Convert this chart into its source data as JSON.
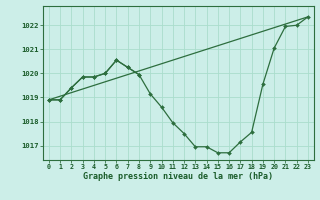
{
  "title": "Graphe pression niveau de la mer (hPa)",
  "background_color": "#cceee8",
  "grid_color": "#aaddcc",
  "line_color": "#2d6e3e",
  "marker_color": "#2d6e3e",
  "xlim": [
    -0.5,
    23.5
  ],
  "ylim": [
    1016.4,
    1022.8
  ],
  "yticks": [
    1017,
    1018,
    1019,
    1020,
    1021,
    1022
  ],
  "xticks": [
    0,
    1,
    2,
    3,
    4,
    5,
    6,
    7,
    8,
    9,
    10,
    11,
    12,
    13,
    14,
    15,
    16,
    17,
    18,
    19,
    20,
    21,
    22,
    23
  ],
  "series_main": {
    "x": [
      0,
      1,
      2,
      3,
      4,
      5,
      6,
      7,
      8,
      9,
      10,
      11,
      12,
      13,
      14,
      15,
      16,
      17,
      18,
      19,
      20,
      21,
      22,
      23
    ],
    "y": [
      1018.9,
      1018.9,
      1019.4,
      1019.85,
      1019.85,
      1020.0,
      1020.55,
      1020.25,
      1019.95,
      1019.15,
      1018.6,
      1017.95,
      1017.5,
      1016.95,
      1016.95,
      1016.7,
      1016.7,
      1017.15,
      1017.55,
      1019.55,
      1021.05,
      1021.95,
      1022.0,
      1022.35
    ]
  },
  "series_early": {
    "x": [
      0,
      1,
      2,
      3,
      4,
      5,
      6,
      7,
      8
    ],
    "y": [
      1018.9,
      1018.9,
      1019.4,
      1019.85,
      1019.85,
      1020.0,
      1020.55,
      1020.25,
      1019.95
    ]
  },
  "series_straight": {
    "x": [
      0,
      23
    ],
    "y": [
      1018.9,
      1022.35
    ]
  },
  "font_color": "#1a5c2a"
}
